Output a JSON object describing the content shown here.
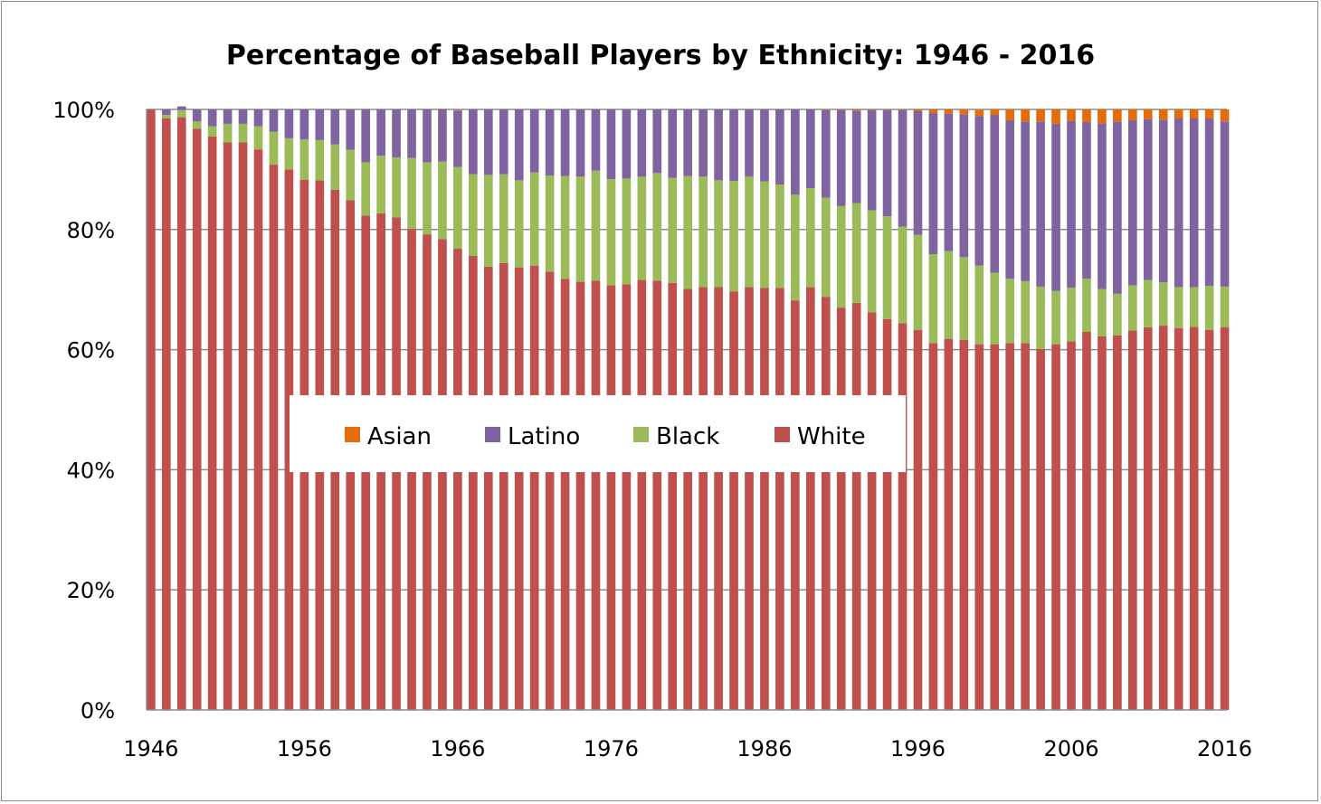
{
  "chart_data": {
    "type": "bar",
    "stacked": true,
    "title": "Percentage of Baseball Players by Ethnicity: 1946 - 2016",
    "xlabel": "",
    "ylabel": "",
    "ylim": [
      0,
      100
    ],
    "y_tick_labels": [
      "0%",
      "20%",
      "40%",
      "60%",
      "80%",
      "100%"
    ],
    "y_tick_values": [
      0,
      20,
      40,
      60,
      80,
      100
    ],
    "x_tick_labels": [
      "1946",
      "1956",
      "1966",
      "1976",
      "1986",
      "1996",
      "2006",
      "2016"
    ],
    "x_tick_values": [
      1946,
      1956,
      1966,
      1976,
      1986,
      1996,
      2006,
      2016
    ],
    "grid": true,
    "legend_placement": "center",
    "legend_order": [
      "Asian",
      "Latino",
      "Black",
      "White"
    ],
    "x": [
      1946,
      1947,
      1948,
      1949,
      1950,
      1951,
      1952,
      1953,
      1954,
      1955,
      1956,
      1957,
      1958,
      1959,
      1960,
      1961,
      1962,
      1963,
      1964,
      1965,
      1966,
      1967,
      1968,
      1969,
      1970,
      1971,
      1972,
      1973,
      1974,
      1975,
      1976,
      1977,
      1978,
      1979,
      1980,
      1981,
      1982,
      1983,
      1984,
      1985,
      1986,
      1987,
      1988,
      1989,
      1990,
      1991,
      1992,
      1993,
      1994,
      1995,
      1996,
      1997,
      1998,
      1999,
      2000,
      2001,
      2002,
      2003,
      2004,
      2005,
      2006,
      2007,
      2008,
      2009,
      2010,
      2011,
      2012,
      2013,
      2014,
      2015,
      2016
    ],
    "series": [
      {
        "name": "White",
        "color": "#c0504d",
        "values": [
          100,
          98.5,
          98.7,
          96.8,
          95.5,
          94.5,
          94.5,
          93.3,
          90.8,
          90,
          88.3,
          88.2,
          86.6,
          84.9,
          82.3,
          82.7,
          82,
          80.1,
          79.2,
          78.4,
          76.8,
          75.6,
          73.8,
          74.4,
          73.7,
          74,
          73,
          71.8,
          71.3,
          71.5,
          70.7,
          70.9,
          71.6,
          71.5,
          71.1,
          70.1,
          70.4,
          70.4,
          69.7,
          70.4,
          70.3,
          70.3,
          68.2,
          70.4,
          68.8,
          67,
          67.8,
          66.2,
          65.1,
          64.4,
          63.3,
          61.1,
          61.8,
          61.6,
          60.9,
          60.9,
          61.1,
          61.1,
          60.1,
          60.9,
          61.4,
          63,
          62.2,
          62.4,
          63.2,
          63.7,
          64,
          63.6,
          63.8,
          63.3,
          63.7
        ]
      },
      {
        "name": "Black",
        "color": "#9bbb59",
        "values": [
          0,
          0.6,
          1.2,
          1.2,
          1.7,
          3.1,
          3.1,
          3.9,
          5.5,
          5.2,
          6.7,
          6.7,
          7.6,
          8.4,
          8.9,
          9.6,
          10,
          11.8,
          12,
          12.9,
          13.6,
          13.6,
          15.3,
          14.8,
          14.5,
          15.5,
          16,
          17.1,
          17.5,
          18.3,
          17.7,
          17.6,
          17.2,
          17.9,
          17.5,
          18.8,
          18.4,
          17.8,
          18.4,
          18.4,
          17.7,
          17.2,
          17.6,
          16.5,
          16.5,
          16.9,
          16.6,
          17,
          17.1,
          16.1,
          15.8,
          14.8,
          14.6,
          13.8,
          13.1,
          11.9,
          10.7,
          10.3,
          10.4,
          8.9,
          8.9,
          8.8,
          7.9,
          6.9,
          7.5,
          7.9,
          7.2,
          6.8,
          6.6,
          7.3,
          6.8
        ]
      },
      {
        "name": "Latino",
        "color": "#8064a2",
        "values": [
          0,
          0.9,
          0.6,
          2,
          2.8,
          2.4,
          2.4,
          2.8,
          3.7,
          4.8,
          5,
          5.1,
          5.8,
          6.7,
          8.8,
          7.7,
          8,
          8.1,
          8.8,
          8.7,
          9.4,
          10.8,
          10.9,
          10.8,
          11.8,
          10.5,
          11,
          11.1,
          11.2,
          10.2,
          11.6,
          11.5,
          11.2,
          10.6,
          11.4,
          11.1,
          11.2,
          11.8,
          11.9,
          11.2,
          12,
          12.5,
          14.2,
          13.1,
          14.6,
          16,
          15.4,
          16.7,
          17.7,
          19.4,
          20.6,
          23.5,
          22.9,
          23.8,
          24.9,
          26.3,
          26.4,
          26.6,
          27.5,
          27.8,
          27.8,
          26.1,
          27.6,
          28.7,
          27.5,
          26.8,
          27.1,
          28.1,
          28.1,
          27.9,
          27.5
        ]
      },
      {
        "name": "Asian",
        "color": "#e46c0a",
        "values": [
          0,
          0,
          0,
          0,
          0,
          0,
          0,
          0,
          0,
          0,
          0,
          0,
          0,
          0,
          0,
          0,
          0,
          0,
          0,
          0.1,
          0.1,
          0,
          0,
          0,
          0,
          0,
          0,
          0,
          0,
          0,
          0,
          0,
          0,
          0,
          0,
          0,
          0,
          0,
          0,
          0,
          0,
          0,
          0,
          0,
          0.1,
          0.1,
          0.2,
          0.1,
          0.1,
          0.1,
          0.3,
          0.6,
          0.7,
          0.8,
          1,
          0.9,
          1.8,
          2,
          2,
          2.4,
          1.9,
          2.1,
          2.3,
          2,
          1.8,
          1.6,
          1.7,
          1.5,
          1.5,
          1.5,
          2
        ]
      }
    ]
  }
}
